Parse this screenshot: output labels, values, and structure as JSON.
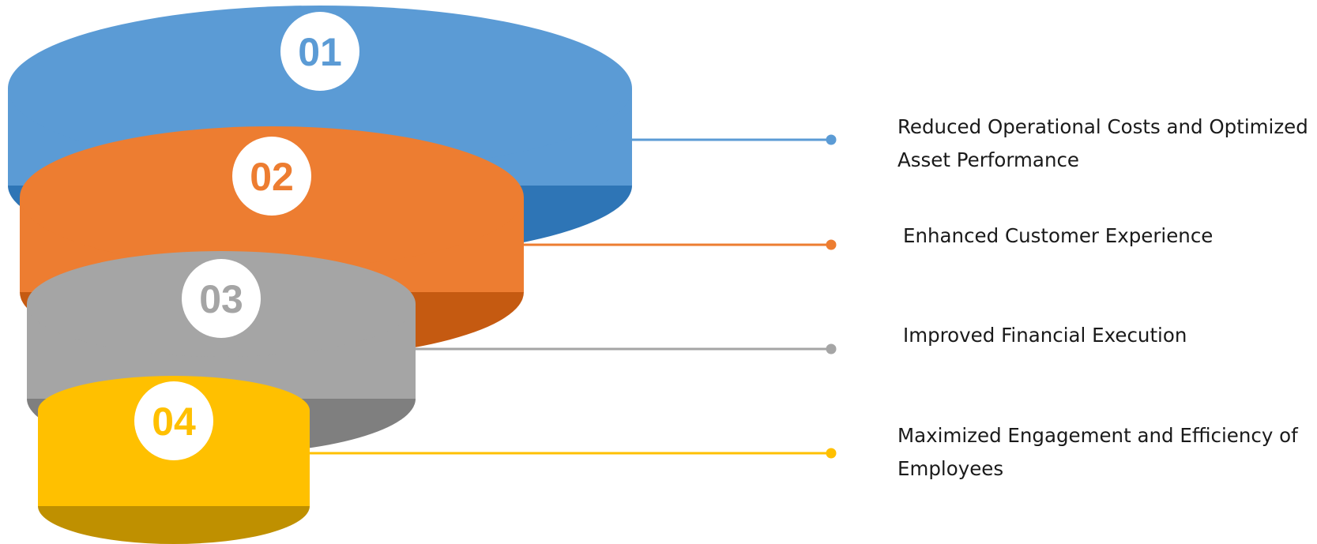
{
  "colors": {
    "tier_1": "#5b9bd5",
    "tier_2": "#ed7d31",
    "tier_3": "#a5a5a5",
    "tier_4": "#ffc000"
  },
  "tiers": [
    {
      "number": "01",
      "label_lines": [
        "Reduced Operational Costs and Optimized",
        "Asset Performance"
      ],
      "color": "#5b9bd5",
      "shade": "#2e75b6"
    },
    {
      "number": "02",
      "label_lines": [
        "Enhanced Customer Experience"
      ],
      "color": "#ed7d31",
      "shade": "#c55a11"
    },
    {
      "number": "03",
      "label_lines": [
        "Improved Financial Execution"
      ],
      "color": "#a5a5a5",
      "shade": "#7f7f7f"
    },
    {
      "number": "04",
      "label_lines": [
        "Maximized Engagement and Efficiency of",
        "Employees"
      ],
      "color": "#ffc000",
      "shade": "#bf9000"
    }
  ]
}
